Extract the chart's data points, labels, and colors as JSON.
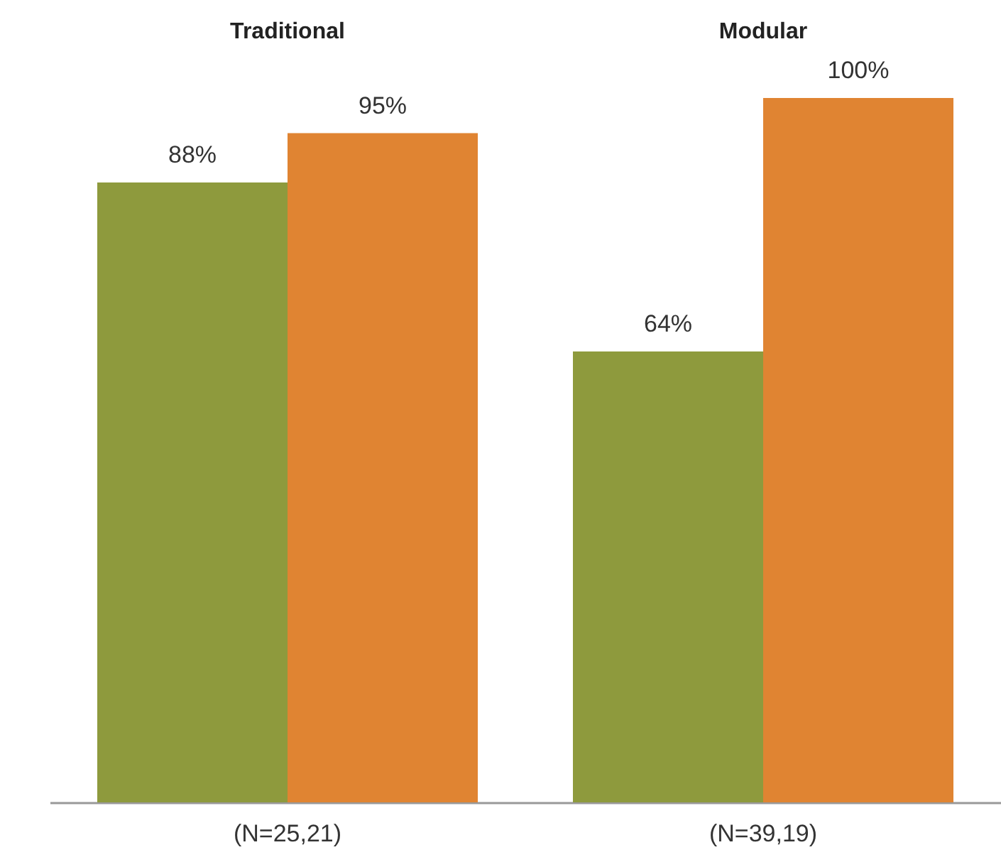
{
  "chart_data": {
    "type": "bar",
    "categories": [
      "(N=25,21)",
      "(N=39,19)"
    ],
    "series": [
      {
        "color": "#8e9a3d",
        "values": [
          88,
          64
        ],
        "value_labels": [
          "88%",
          "64%"
        ]
      },
      {
        "color": "#e08432",
        "values": [
          95,
          100
        ],
        "value_labels": [
          "95%",
          "100%"
        ]
      }
    ],
    "annotations": [
      "Traditional",
      "Modular"
    ]
  }
}
